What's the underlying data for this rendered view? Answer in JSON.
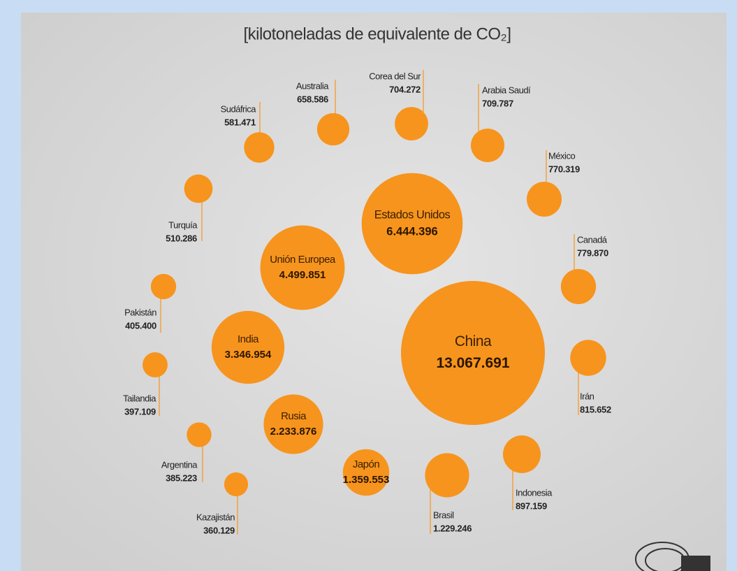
{
  "chart_data": {
    "type": "bubble",
    "title": "[kilotoneladas de equivalente de CO₂]",
    "categories": [
      "China",
      "Estados Unidos",
      "Unión Europea",
      "India",
      "Rusia",
      "Japón",
      "Brasil",
      "Indonesia",
      "Irán",
      "Canadá",
      "México",
      "Arabia Saudí",
      "Corea del Sur",
      "Australia",
      "Sudáfrica",
      "Turquía",
      "Pakistán",
      "Tailandia",
      "Argentina",
      "Kazajistán"
    ],
    "values": [
      13067691,
      6444396,
      4499851,
      3346954,
      2233876,
      1359553,
      1229246,
      897159,
      815652,
      779870,
      770319,
      709787,
      704272,
      658586,
      581471,
      510286,
      405400,
      397109,
      385223,
      360129
    ],
    "value_labels": [
      "13.067.691",
      "6.444.396",
      "4.499.851",
      "3.346.954",
      "2.233.876",
      "1.359.553",
      "1.229.246",
      "897.159",
      "815.652",
      "779.870",
      "770.319",
      "709.787",
      "704.272",
      "658.586",
      "581.471",
      "510.286",
      "405.400",
      "397.109",
      "385.223",
      "360.129"
    ],
    "color": "#f7941d"
  }
}
